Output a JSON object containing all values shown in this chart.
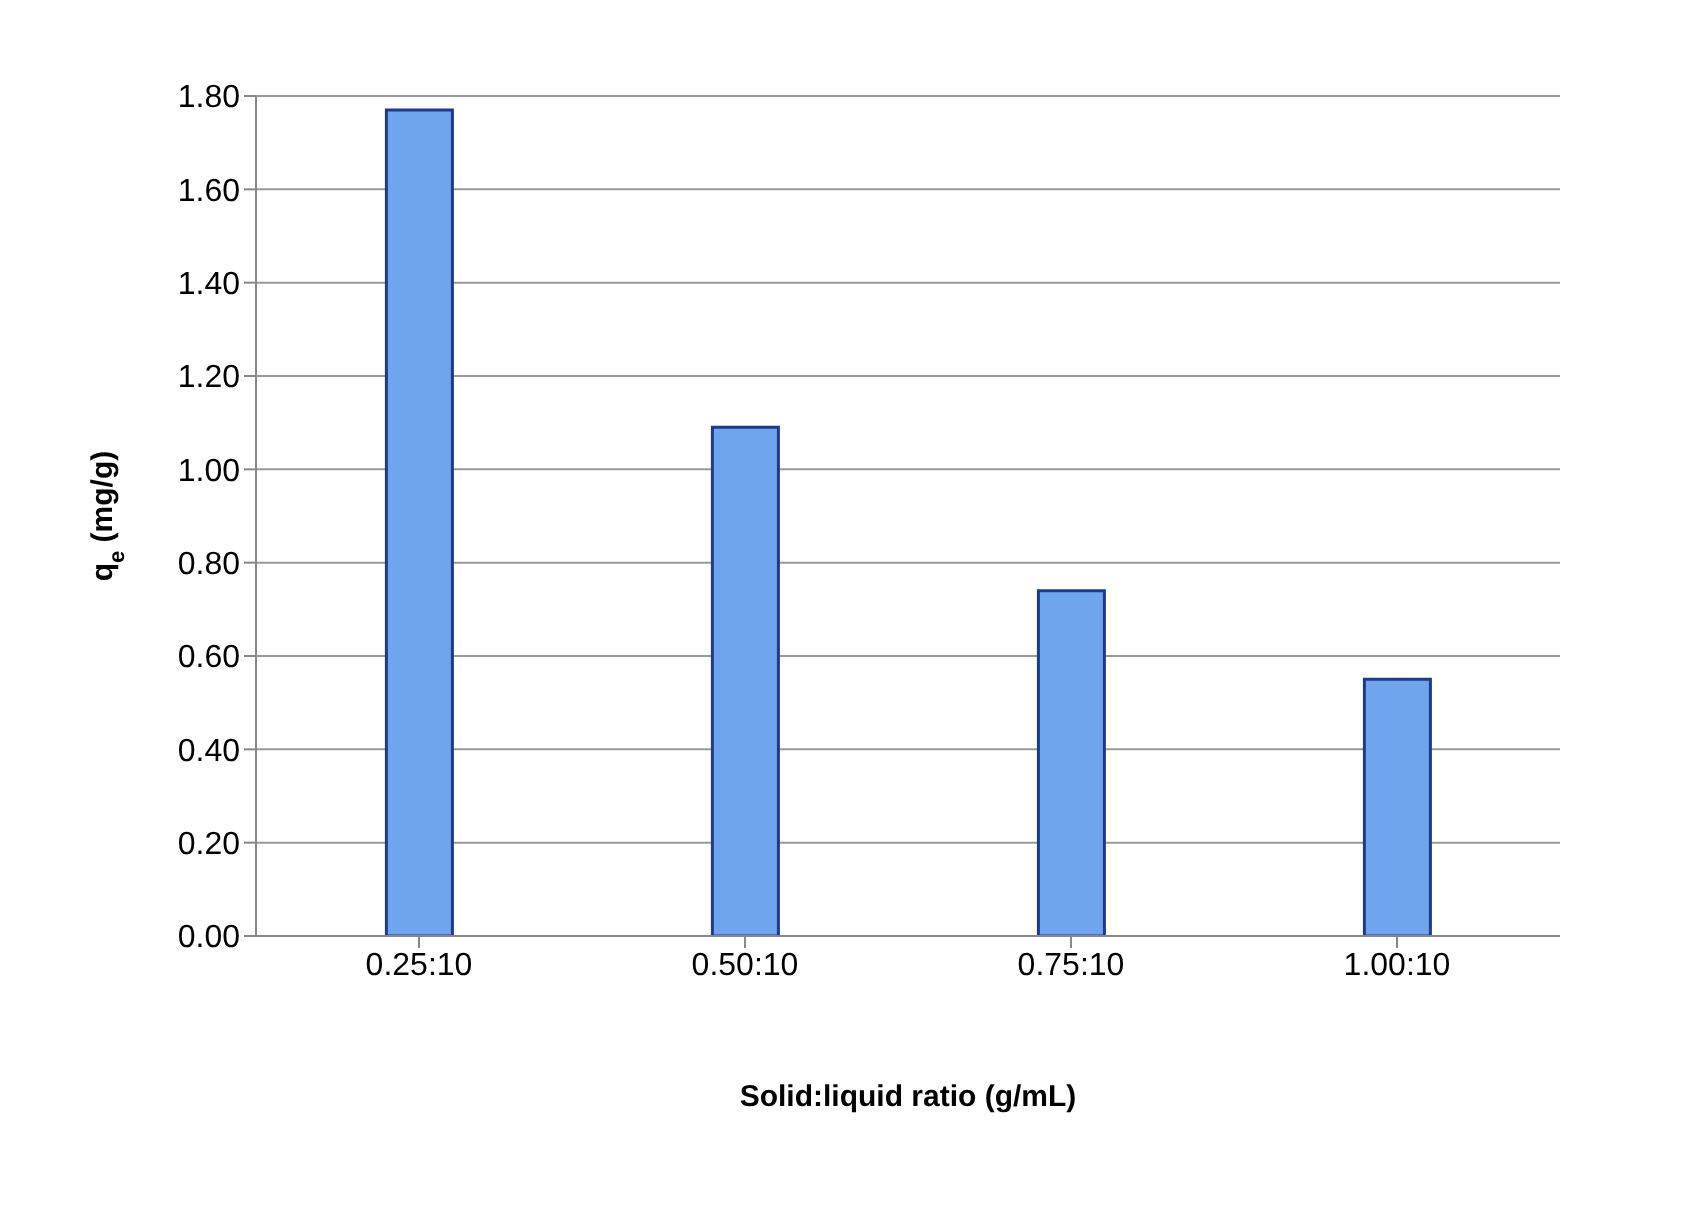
{
  "chart_data": {
    "type": "bar",
    "xlabel": "Solid:liquid ratio (g/mL)",
    "ylabel": "q$_{e}$ (mg/g)",
    "categories": [
      "0.25:10",
      "0.50:10",
      "0.75:10",
      "1.00:10"
    ],
    "values": [
      1.77,
      1.09,
      0.74,
      0.55
    ],
    "color": "#6fa5ef",
    "ylim": [
      0,
      1.8
    ],
    "yticks": [
      {
        "value": 0,
        "label": "0.00"
      },
      {
        "value": 0.2,
        "label": "0.20"
      },
      {
        "value": 0.4,
        "label": "0.40"
      },
      {
        "value": 0.6,
        "label": "0.60"
      },
      {
        "value": 0.8,
        "label": "0.80"
      },
      {
        "value": 1,
        "label": "1.00"
      },
      {
        "value": 1.2,
        "label": "1.20"
      },
      {
        "value": 1.4,
        "label": "1.40"
      },
      {
        "value": 1.6,
        "label": "1.60"
      },
      {
        "value": 1.8,
        "label": "1.80"
      }
    ],
    "grid": "y"
  }
}
